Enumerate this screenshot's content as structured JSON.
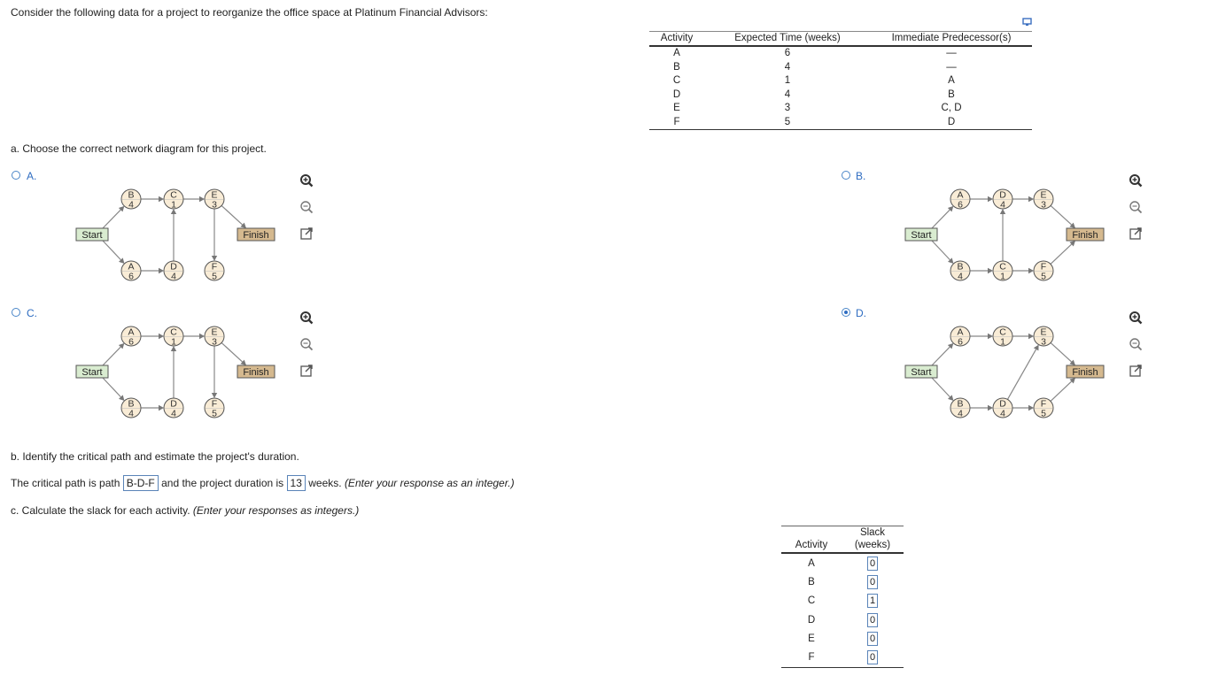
{
  "intro": "Consider the following data for a project to reorganize the office space at Platinum Financial Advisors:",
  "data_table": {
    "headers": [
      "Activity",
      "Expected Time  (weeks)",
      "Immediate Predecessor(s)"
    ],
    "rows": [
      [
        "A",
        "6",
        "—"
      ],
      [
        "B",
        "4",
        "—"
      ],
      [
        "C",
        "1",
        "A"
      ],
      [
        "D",
        "4",
        "B"
      ],
      [
        "E",
        "3",
        "C, D"
      ],
      [
        "F",
        "5",
        "D"
      ]
    ]
  },
  "part_a": {
    "question": "a. Choose the correct network diagram for this project.",
    "start_label": "Start",
    "finish_label": "Finish",
    "options": [
      {
        "label": "A.",
        "selected": false,
        "top": [
          [
            "B",
            "4"
          ],
          [
            "C",
            "1"
          ],
          [
            "E",
            "3"
          ]
        ],
        "bottom": [
          [
            "A",
            "6"
          ],
          [
            "D",
            "4"
          ],
          [
            "F",
            "5"
          ]
        ]
      },
      {
        "label": "B.",
        "selected": false,
        "top": [
          [
            "A",
            "6"
          ],
          [
            "D",
            "4"
          ],
          [
            "E",
            "3"
          ]
        ],
        "bottom": [
          [
            "B",
            "4"
          ],
          [
            "C",
            "1"
          ],
          [
            "F",
            "5"
          ]
        ]
      },
      {
        "label": "C.",
        "selected": false,
        "top": [
          [
            "A",
            "6"
          ],
          [
            "C",
            "1"
          ],
          [
            "E",
            "3"
          ]
        ],
        "bottom": [
          [
            "B",
            "4"
          ],
          [
            "D",
            "4"
          ],
          [
            "F",
            "5"
          ]
        ]
      },
      {
        "label": "D.",
        "selected": true,
        "top": [
          [
            "A",
            "6"
          ],
          [
            "C",
            "1"
          ],
          [
            "E",
            "3"
          ]
        ],
        "bottom": [
          [
            "B",
            "4"
          ],
          [
            "D",
            "4"
          ],
          [
            "F",
            "5"
          ]
        ]
      }
    ]
  },
  "part_b": {
    "question": "b. Identify the critical path and estimate the project's duration.",
    "sentence_pre": "The critical path is path",
    "critical_path": "B-D-F",
    "sentence_mid": "and the project duration is",
    "duration": "13",
    "sentence_post": "weeks.",
    "hint": "(Enter your response as an integer.)"
  },
  "part_c": {
    "question": "c. Calculate the slack for each activity.",
    "hint": "(Enter your responses as integers.)",
    "headers": {
      "activity": "Activity",
      "slack_line1": "Slack",
      "slack_line2": "(weeks)"
    },
    "rows": [
      {
        "activity": "A",
        "slack": "0"
      },
      {
        "activity": "B",
        "slack": "0"
      },
      {
        "activity": "C",
        "slack": "1"
      },
      {
        "activity": "D",
        "slack": "0"
      },
      {
        "activity": "E",
        "slack": "0"
      },
      {
        "activity": "F",
        "slack": "0"
      }
    ]
  },
  "icons": {
    "zoom_in": "zoom-in-icon",
    "zoom_out": "zoom-out-icon",
    "popout": "popout-icon",
    "copy": "copy-icon"
  },
  "colors": {
    "accent": "#2e6cc1",
    "node_fill": "#f9ecd6",
    "start_fill": "#d9ecd0",
    "finish_fill": "#d5b98f",
    "answer_border": "#5a84b8"
  }
}
